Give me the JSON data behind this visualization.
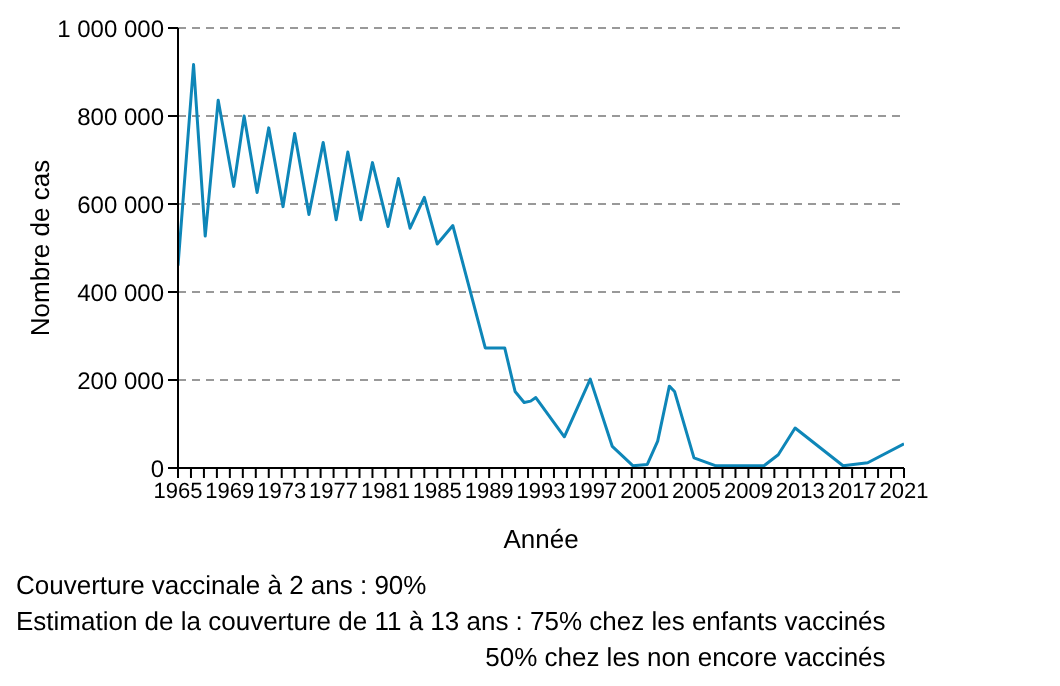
{
  "chart_data": {
    "type": "line",
    "xlabel": "Année",
    "ylabel": "Nombre de cas",
    "x": [
      1965,
      1966.2,
      1967.1,
      1968.1,
      1969.3,
      1970.1,
      1971.1,
      1972,
      1973.1,
      1974,
      1975.1,
      1976.2,
      1977.2,
      1978.1,
      1979.1,
      1980,
      1981.2,
      1982,
      1982.9,
      1984,
      1985,
      1986.2,
      1988.7,
      1990.2,
      1991,
      1991.7,
      1992.2,
      1992.6,
      1994.8,
      1996.8,
      1998.5,
      2000.1,
      2001.2,
      2002,
      2002.9,
      2003.3,
      2004.8,
      2006.5,
      2010.2,
      2011.3,
      2012.6,
      2016.3,
      2018.2,
      2021
    ],
    "series": [
      {
        "color": "#0e86b8",
        "values": [
          460000,
          917000,
          527000,
          836000,
          640000,
          800000,
          626000,
          773000,
          594000,
          760000,
          576000,
          740000,
          564000,
          718000,
          564000,
          694000,
          549000,
          658000,
          545000,
          615000,
          509000,
          551000,
          273000,
          273000,
          174000,
          149000,
          152000,
          160000,
          71000,
          202000,
          49000,
          5000,
          8000,
          61000,
          186000,
          174000,
          23000,
          5000,
          5000,
          30000,
          91000,
          5000,
          12000,
          55000
        ]
      }
    ],
    "xlim": [
      1965,
      2021
    ],
    "xticks": [
      1965,
      {
        "value": 1966,
        "label": null
      },
      {
        "value": 1967,
        "label": null
      },
      {
        "value": 1968,
        "label": null
      },
      1969,
      {
        "value": 1970,
        "label": null
      },
      {
        "value": 1971,
        "label": null
      },
      {
        "value": 1972,
        "label": null
      },
      1973,
      {
        "value": 1974,
        "label": null
      },
      {
        "value": 1975,
        "label": null
      },
      {
        "value": 1976,
        "label": null
      },
      1977,
      {
        "value": 1978,
        "label": null
      },
      {
        "value": 1979,
        "label": null
      },
      {
        "value": 1980,
        "label": null
      },
      1981,
      {
        "value": 1982,
        "label": null
      },
      {
        "value": 1983,
        "label": null
      },
      {
        "value": 1984,
        "label": null
      },
      1985,
      {
        "value": 1986,
        "label": null
      },
      {
        "value": 1987,
        "label": null
      },
      {
        "value": 1988,
        "label": null
      },
      1989,
      {
        "value": 1990,
        "label": null
      },
      {
        "value": 1991,
        "label": null
      },
      {
        "value": 1992,
        "label": null
      },
      1993,
      {
        "value": 1994,
        "label": null
      },
      {
        "value": 1995,
        "label": null
      },
      {
        "value": 1996,
        "label": null
      },
      1997,
      {
        "value": 1998,
        "label": null
      },
      {
        "value": 1999,
        "label": null
      },
      {
        "value": 2000,
        "label": null
      },
      2001,
      {
        "value": 2002,
        "label": null
      },
      {
        "value": 2003,
        "label": null
      },
      {
        "value": 2004,
        "label": null
      },
      2005,
      {
        "value": 2006,
        "label": null
      },
      {
        "value": 2007,
        "label": null
      },
      {
        "value": 2008,
        "label": null
      },
      2009,
      {
        "value": 2010,
        "label": null
      },
      {
        "value": 2011,
        "label": null
      },
      {
        "value": 2012,
        "label": null
      },
      2013,
      {
        "value": 2014,
        "label": null
      },
      {
        "value": 2015,
        "label": null
      },
      {
        "value": 2016,
        "label": null
      },
      2017,
      {
        "value": 2018,
        "label": null
      },
      {
        "value": 2019,
        "label": null
      },
      {
        "value": 2020,
        "label": null
      },
      2021
    ],
    "ylim": [
      0,
      1000000
    ],
    "yticks": [
      0,
      {
        "value": 200000,
        "label": "200 000"
      },
      {
        "value": 400000,
        "label": "400 000"
      },
      {
        "value": 600000,
        "label": "600 000"
      },
      {
        "value": 800000,
        "label": "800 000"
      },
      {
        "value": 1000000,
        "label": "1 000 000"
      }
    ],
    "grid": "y",
    "legend": false,
    "marker": "none",
    "line_style": "solid",
    "annotations": [
      "Couverture vaccinale à 2 ans : 90%",
      "Estimation de la couverture de 11 à 13 ans : 75% chez les enfants vaccinés",
      "50% chez les non encore vaccinés"
    ]
  }
}
